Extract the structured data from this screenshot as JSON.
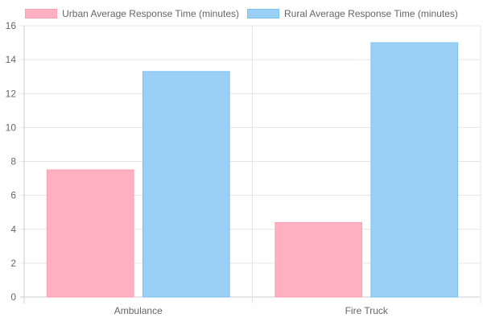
{
  "chart_data": {
    "type": "bar",
    "categories": [
      "Ambulance",
      "Fire Truck"
    ],
    "series": [
      {
        "name": "Urban Average Response Time (minutes)",
        "values": [
          7.5,
          4.4
        ],
        "color": "#ffb1c1",
        "border": "#ff9fb3"
      },
      {
        "name": "Rural Average Response Time (minutes)",
        "values": [
          13.3,
          15.0
        ],
        "color": "#9ad0f5",
        "border": "#7cc1f0"
      }
    ],
    "ylim": [
      0,
      16
    ],
    "yticks": [
      0,
      2,
      4,
      6,
      8,
      10,
      12,
      14,
      16
    ],
    "grid": true,
    "legend_position": "top",
    "title": "",
    "xlabel": "",
    "ylabel": ""
  }
}
